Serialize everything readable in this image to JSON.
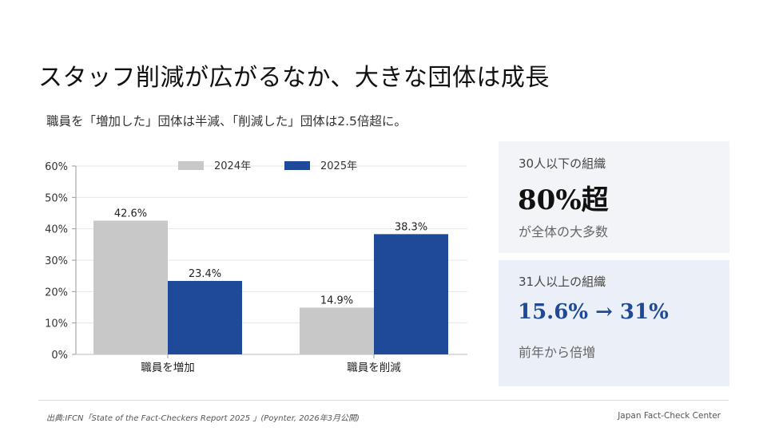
{
  "slide": {
    "title": "スタッフ削減が広がるなか、大きな団体は成長",
    "subtitle": "職員を「増加した」団体は半減、「削減した」団体は2.5倍超に。"
  },
  "chart_data": {
    "type": "bar",
    "categories": [
      "職員を増加",
      "職員を削減"
    ],
    "series": [
      {
        "name": "2024年",
        "values": [
          42.6,
          14.9
        ],
        "labels": [
          "42.6%",
          "14.9%"
        ],
        "color": "#c8c8c8"
      },
      {
        "name": "2025年",
        "values": [
          23.4,
          38.3
        ],
        "labels": [
          "23.4%",
          "38.3%"
        ],
        "color": "#1f4a9a"
      }
    ],
    "ylim": [
      0,
      60
    ],
    "yticks": [
      0,
      10,
      20,
      30,
      40,
      50,
      60
    ],
    "ytick_labels": [
      "0%",
      "10%",
      "20%",
      "30%",
      "40%",
      "50%",
      "60%"
    ],
    "grid": true,
    "legend": "top-center"
  },
  "cards": [
    {
      "label": "30人以下の組織",
      "value": "80%超",
      "note": "が全体の大多数"
    },
    {
      "label": "31人以上の組織",
      "value": "15.6% → 31%",
      "note": "前年から倍増"
    }
  ],
  "footer": {
    "source": "出典:IFCN「State of the Fact-Checkers Report 2025 」(Poynter, 2026年3月公開)",
    "org": "Japan Fact-Check Center"
  }
}
